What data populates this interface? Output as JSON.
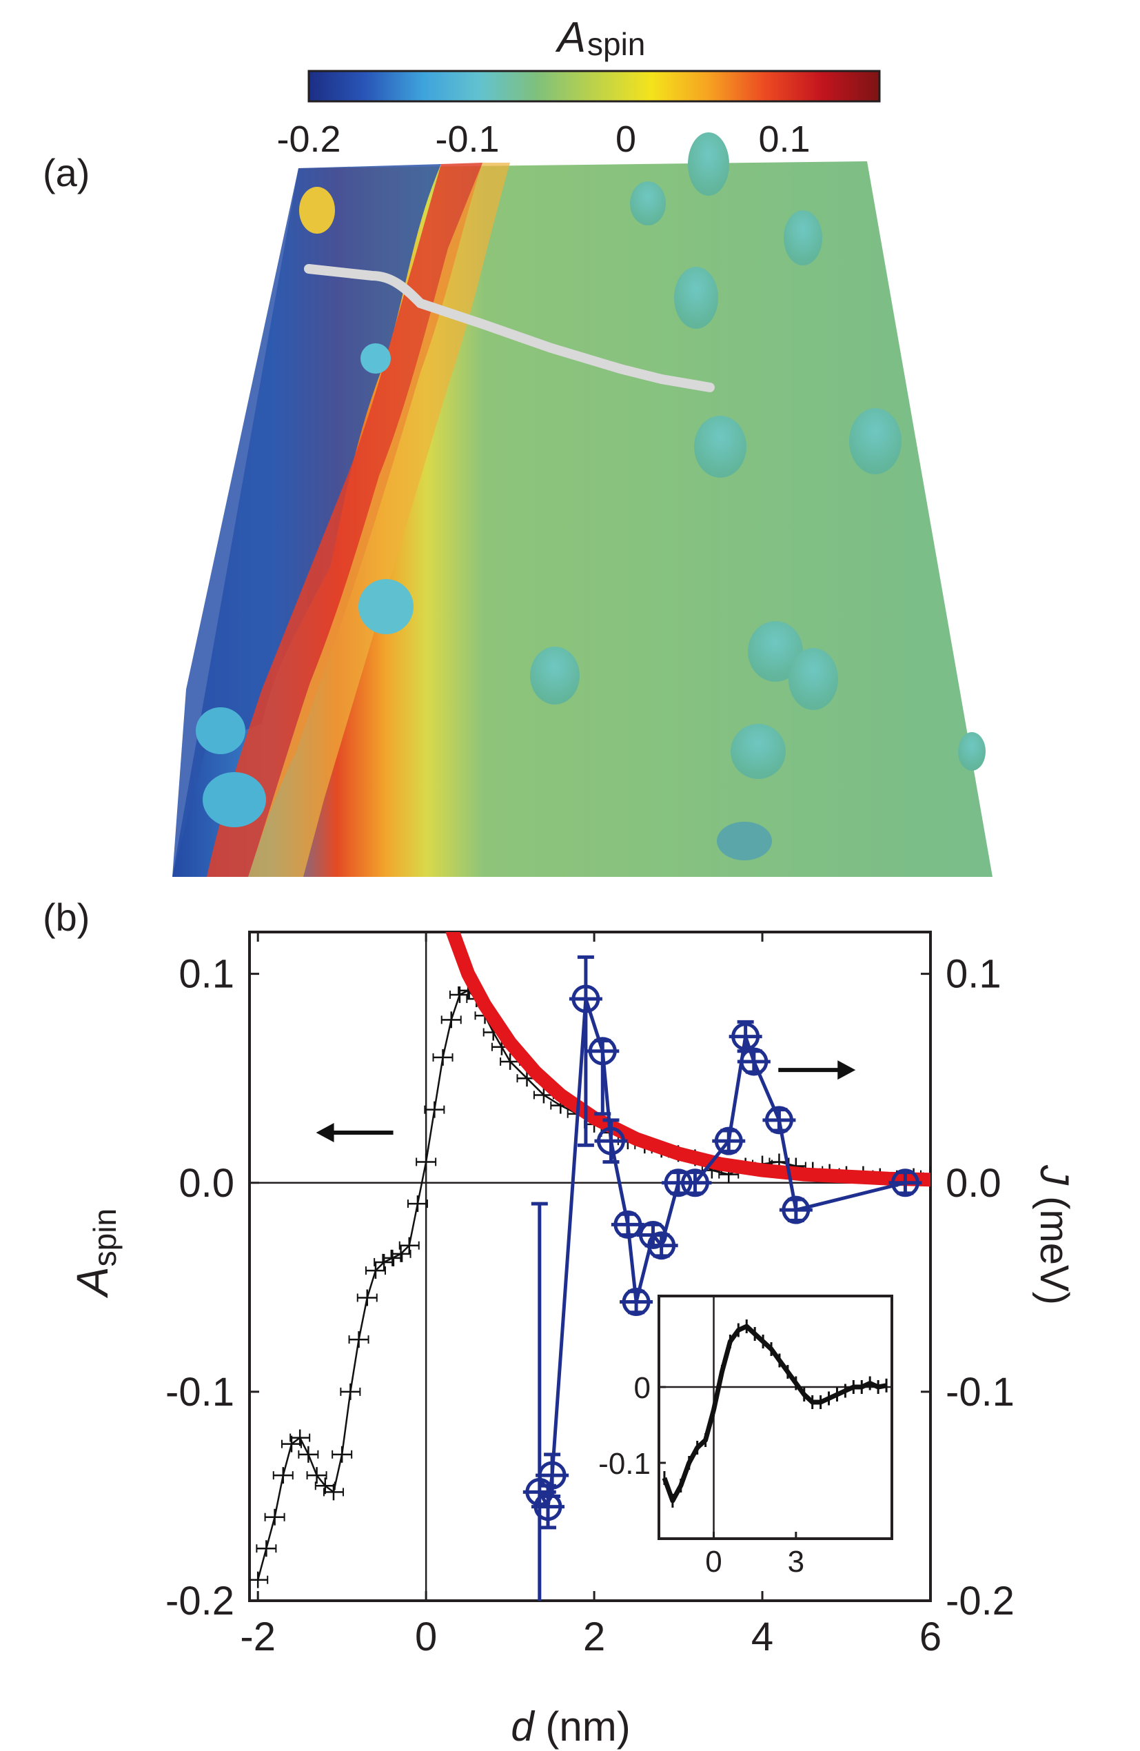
{
  "colorbar": {
    "title_main": "A",
    "title_sub": "spin",
    "ticks": [
      {
        "value": -0.2,
        "label": "-0.2"
      },
      {
        "value": -0.1,
        "label": "-0.1"
      },
      {
        "value": 0,
        "label": "0"
      },
      {
        "value": 0.1,
        "label": "0.1"
      }
    ],
    "range": [
      -0.2,
      0.16
    ],
    "colors": [
      "#1c2e84",
      "#2956b8",
      "#3ea3dc",
      "#63c2cf",
      "#7fc07c",
      "#bcd24a",
      "#f4e31c",
      "#f6a321",
      "#ec4a22",
      "#c2141e",
      "#7d1414"
    ]
  },
  "panel_a": {
    "label": "(a)",
    "description_colors": {
      "left": "#2a4fa8",
      "mid": "#e94a20",
      "bg": "#79bd8a",
      "line": "#d6d6d6"
    }
  },
  "panel_b": {
    "label": "(b)",
    "x_label_main": "d",
    "x_label_rest": " (nm)",
    "y_left_main": "A",
    "y_left_sub": "spin",
    "y_right_main": "J",
    "y_right_rest": " (meV)"
  },
  "chart_data": [
    {
      "type": "line",
      "name": "panel (b) main plot",
      "xlim": [
        -2.1,
        6
      ],
      "ylim": [
        -0.2,
        0.12
      ],
      "x_ticks": [
        -2,
        0,
        2,
        4,
        6
      ],
      "x_tick_labels": [
        "-2",
        "0",
        "2",
        "4",
        "6"
      ],
      "y_ticks": [
        -0.2,
        -0.1,
        0.0,
        0.1
      ],
      "y_tick_labels": [
        "-0.2",
        "-0.1",
        "0.0",
        "0.1"
      ],
      "y_right_tick_labels": [
        "-0.2",
        "-0.1",
        "0.0",
        "0.1"
      ],
      "xlabel": "d (nm)",
      "ylabel_left": "Aspin",
      "ylabel_right": "J (meV)",
      "arrows": [
        {
          "direction": "left",
          "x": -0.8,
          "y": 0.024
        },
        {
          "direction": "right",
          "x": 4.6,
          "y": 0.054
        }
      ],
      "series": [
        {
          "name": "Aspin (black, error bars)",
          "color": "#111111",
          "x": [
            -2.0,
            -1.9,
            -1.8,
            -1.7,
            -1.6,
            -1.5,
            -1.4,
            -1.3,
            -1.2,
            -1.1,
            -1.0,
            -0.9,
            -0.8,
            -0.7,
            -0.6,
            -0.5,
            -0.4,
            -0.3,
            -0.2,
            -0.1,
            0.0,
            0.1,
            0.2,
            0.3,
            0.4,
            0.5,
            0.6,
            0.7,
            0.8,
            0.9,
            1.0,
            1.2,
            1.4,
            1.6,
            1.8,
            2.0,
            2.2,
            2.4,
            2.6,
            2.8,
            3.0,
            3.2,
            3.4,
            3.6,
            3.8,
            4.0,
            4.2,
            4.4,
            4.6,
            4.8,
            5.0,
            5.2,
            5.4,
            5.6,
            5.8,
            6.0
          ],
          "y": [
            -0.19,
            -0.175,
            -0.16,
            -0.14,
            -0.125,
            -0.122,
            -0.13,
            -0.14,
            -0.145,
            -0.148,
            -0.13,
            -0.1,
            -0.075,
            -0.055,
            -0.042,
            -0.038,
            -0.036,
            -0.034,
            -0.03,
            -0.01,
            0.01,
            0.035,
            0.06,
            0.078,
            0.09,
            0.092,
            0.088,
            0.08,
            0.072,
            0.065,
            0.058,
            0.05,
            0.042,
            0.037,
            0.033,
            0.028,
            0.024,
            0.02,
            0.018,
            0.016,
            0.014,
            0.012,
            0.006,
            0.004,
            0.008,
            0.009,
            0.01,
            0.008,
            0.006,
            0.005,
            0.004,
            0.004,
            0.003,
            0.002,
            0.003,
            0.004
          ]
        },
        {
          "name": "exponential fit (red)",
          "color": "#e3161c",
          "x": [
            0.3,
            0.5,
            0.7,
            1.0,
            1.3,
            1.6,
            2.0,
            2.5,
            3.0,
            3.5,
            4.0,
            4.5,
            5.0,
            5.5,
            6.0
          ],
          "y": [
            0.122,
            0.1,
            0.085,
            0.067,
            0.053,
            0.042,
            0.031,
            0.021,
            0.014,
            0.009,
            0.006,
            0.004,
            0.003,
            0.002,
            0.0015
          ]
        },
        {
          "name": "J (blue, circles)",
          "color": "#1f2f8f",
          "x": [
            1.35,
            1.45,
            1.5,
            1.9,
            2.1,
            2.2,
            2.4,
            2.5,
            2.7,
            2.8,
            3.0,
            3.2,
            3.6,
            3.8,
            3.9,
            4.2,
            4.4,
            5.7
          ],
          "y": [
            -0.148,
            -0.155,
            -0.14,
            0.088,
            0.063,
            0.02,
            -0.02,
            -0.057,
            -0.025,
            -0.03,
            0.0,
            0.0,
            0.02,
            0.07,
            0.058,
            0.03,
            -0.013,
            0.0
          ],
          "y_err_top": [
            0.138,
            0.01,
            0.01,
            0.02,
            0.005,
            0.01,
            0.005,
            0.005,
            0.005,
            0.005,
            0.005,
            0.005,
            0.005,
            0.007,
            0.005,
            0.005,
            0.005,
            0.005
          ],
          "y_err_bottom": [
            0.06,
            0.01,
            0.01,
            0.07,
            0.03,
            0.01,
            0.005,
            0.005,
            0.005,
            0.005,
            0.005,
            0.005,
            0.005,
            0.007,
            0.005,
            0.005,
            0.005,
            0.005
          ]
        }
      ]
    },
    {
      "type": "line",
      "name": "panel (b) inset",
      "xlim": [
        -2,
        6.5
      ],
      "ylim": [
        -0.2,
        0.12
      ],
      "x_ticks": [
        0,
        3
      ],
      "x_tick_labels": [
        "0",
        "3"
      ],
      "y_ticks": [
        0,
        -0.1
      ],
      "y_tick_labels": [
        "0",
        "-0.1"
      ],
      "series": [
        {
          "name": "Aspin extended",
          "color": "#111111",
          "x": [
            -1.8,
            -1.5,
            -1.2,
            -0.9,
            -0.6,
            -0.3,
            0.0,
            0.3,
            0.6,
            0.9,
            1.2,
            1.5,
            1.8,
            2.1,
            2.4,
            2.7,
            3.0,
            3.3,
            3.6,
            3.9,
            4.2,
            4.5,
            4.8,
            5.1,
            5.4,
            5.7,
            6.0,
            6.3
          ],
          "y": [
            -0.12,
            -0.15,
            -0.13,
            -0.1,
            -0.08,
            -0.07,
            -0.03,
            0.02,
            0.06,
            0.075,
            0.08,
            0.07,
            0.06,
            0.05,
            0.035,
            0.02,
            0.005,
            -0.01,
            -0.02,
            -0.02,
            -0.015,
            -0.01,
            -0.005,
            0.0,
            0.0,
            0.005,
            0.0,
            0.002
          ]
        }
      ]
    }
  ]
}
